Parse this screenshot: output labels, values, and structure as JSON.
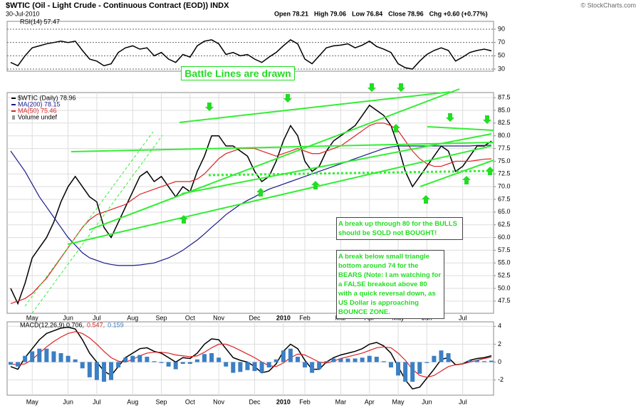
{
  "header": {
    "title": "$WTIC (Oil - Light Crude - Continuous Contract (EOD)) INDX",
    "date": "30-Jul-2010",
    "quote": [
      "Open 78.21",
      "High 79.06",
      "Low 76.84",
      "Close 78.96",
      "Chg +0.60 (+0.77%)"
    ],
    "copyright": "© StockCharts.com"
  },
  "chart_data": [
    {
      "type": "line",
      "title": "RSI(14) 57.47",
      "ylim": [
        26.8,
        101.8
      ],
      "yticks": [
        90,
        70,
        50,
        30
      ],
      "grid": true,
      "series": [
        {
          "name": "RSI(14)",
          "color": "#000000",
          "values": [
            40,
            35,
            50,
            62,
            65,
            68,
            70,
            72,
            70,
            72,
            58,
            45,
            42,
            35,
            38,
            55,
            62,
            65,
            60,
            62,
            50,
            55,
            45,
            40,
            52,
            48,
            65,
            72,
            74,
            68,
            52,
            55,
            50,
            52,
            45,
            40,
            48,
            55,
            65,
            74,
            68,
            45,
            38,
            50,
            62,
            65,
            66,
            68,
            62,
            66,
            72,
            64,
            60,
            55,
            38,
            32,
            30,
            42,
            52,
            58,
            62,
            58,
            42,
            48,
            55,
            58,
            60,
            57.47
          ]
        }
      ]
    },
    {
      "type": "line",
      "ylim": [
        45.1,
        88.5
      ],
      "grid": true,
      "yticks": [
        87.5,
        {
          "value": 85,
          "label": "85.0"
        },
        82.5,
        {
          "value": 80,
          "label": "80.0"
        },
        77.5,
        {
          "value": 75,
          "label": "75.0"
        },
        72.5,
        {
          "value": 70,
          "label": "70.0"
        },
        67.5,
        {
          "value": 65,
          "label": "65.0"
        },
        62.5,
        {
          "value": 60,
          "label": "60.0"
        },
        57.5,
        {
          "value": 55,
          "label": "55.0"
        },
        52.5,
        {
          "value": 50,
          "label": "50.0"
        },
        47.5
      ],
      "categories": [
        null,
        null,
        null,
        "May",
        null,
        null,
        null,
        null,
        "Jun",
        null,
        null,
        null,
        "Jul",
        null,
        null,
        null,
        null,
        "Aug",
        null,
        null,
        null,
        "Sep",
        null,
        null,
        null,
        "Oct",
        null,
        null,
        null,
        "Nov",
        null,
        null,
        null,
        null,
        "Dec",
        null,
        null,
        null,
        "2010",
        null,
        null,
        "Feb",
        null,
        null,
        null,
        null,
        "Mar",
        null,
        null,
        null,
        "Apr",
        null,
        null,
        null,
        "May",
        null,
        null,
        null,
        "Jun",
        null,
        null,
        null,
        null,
        "Jul",
        null,
        null,
        null,
        null
      ],
      "series": [
        {
          "name": "$WTIC (Daily) 78.96",
          "color": "#000000",
          "values": [
            50,
            47,
            51,
            56,
            58,
            60,
            63,
            67,
            70,
            72,
            70,
            68,
            67,
            62,
            60,
            63,
            66,
            69,
            72,
            73,
            71,
            72,
            70,
            68,
            70,
            69,
            73,
            76,
            80,
            80,
            78,
            78,
            77,
            76,
            73,
            71,
            72,
            75,
            79,
            82,
            80,
            75,
            73,
            74,
            77,
            79,
            80,
            81,
            82,
            84,
            86,
            85,
            84,
            82,
            78,
            73,
            70,
            72,
            74,
            76,
            78,
            77,
            73,
            74,
            76,
            78,
            78,
            78.96
          ]
        },
        {
          "name": "MA(200) 78.15",
          "color": "#1a1a8c",
          "values": [
            77,
            75,
            73,
            70.5,
            68,
            66,
            64,
            62,
            60,
            58.5,
            57,
            56,
            55.5,
            55,
            54.7,
            54.5,
            54.5,
            54.5,
            54.6,
            54.8,
            55,
            55.5,
            56,
            56.7,
            57.5,
            58.5,
            59.5,
            60.7,
            62,
            63.2,
            64.5,
            65.5,
            66.5,
            67.3,
            68,
            68.8,
            69.5,
            70,
            70.5,
            71,
            71.5,
            72,
            72.5,
            73,
            73.5,
            74,
            74.5,
            75,
            75.5,
            76,
            76.5,
            77,
            77.5,
            77.8,
            78,
            78,
            78,
            78,
            78,
            78,
            78,
            78,
            78,
            78,
            78,
            78.1,
            78.1,
            78.15
          ]
        },
        {
          "name": "MA(50) 75.46",
          "color": "#dd2222",
          "values": [
            47,
            47.5,
            48,
            49,
            50.5,
            52,
            54,
            56,
            58,
            60,
            62,
            63.5,
            64.5,
            65,
            65.5,
            66,
            66.5,
            67.5,
            68.5,
            69,
            69.5,
            70,
            70.5,
            71,
            71,
            71,
            71.5,
            72.5,
            74,
            75.5,
            76.5,
            77,
            77.5,
            77.5,
            77.5,
            77,
            76.5,
            76,
            76.5,
            77,
            77.5,
            77,
            76.5,
            76.5,
            77,
            77.5,
            78,
            79,
            80,
            81,
            82,
            82.5,
            82.5,
            82,
            81,
            79,
            77,
            75.5,
            74.5,
            74,
            74,
            74.5,
            75,
            75,
            75,
            75.2,
            75.4,
            75.46
          ]
        }
      ],
      "volume_label": "Volume undef",
      "annotations": [
        "Battle Lines are drawn",
        "A break up through 80 for the BULLS should be SOLD not BOUGHT!",
        "A break below small triangle bottom around 74 for the BEARS (Note: I am watching for a FALSE breakout above 80 with a quick reversal down, as US Dollar is approaching BOUNCE ZONE."
      ]
    },
    {
      "type": "line",
      "ylim": [
        -3.7,
        4.5
      ],
      "yticks": [
        4,
        2,
        0,
        -2
      ],
      "grid": true,
      "categories": [
        null,
        null,
        null,
        "May",
        null,
        null,
        null,
        null,
        "Jun",
        null,
        null,
        null,
        "Jul",
        null,
        null,
        null,
        null,
        "Aug",
        null,
        null,
        null,
        "Sep",
        null,
        null,
        null,
        "Oct",
        null,
        null,
        null,
        "Nov",
        null,
        null,
        null,
        null,
        "Dec",
        null,
        null,
        null,
        "2010",
        null,
        null,
        "Feb",
        null,
        null,
        null,
        null,
        "Mar",
        null,
        null,
        null,
        "Apr",
        null,
        null,
        null,
        "May",
        null,
        null,
        null,
        "Jun",
        null,
        null,
        null,
        null,
        "Jul",
        null,
        null,
        null,
        null
      ],
      "series": [
        {
          "name": "MACD(12,26,9) 0.706,",
          "color": "#000000",
          "values": [
            -0.5,
            -0.8,
            0.5,
            1.5,
            2.5,
            3.2,
            3.5,
            3.8,
            3.9,
            3.7,
            2.5,
            1,
            0,
            -1,
            -1.5,
            -0.5,
            0.5,
            1,
            1.5,
            1.6,
            1.2,
            1,
            0.5,
            0,
            0.5,
            0.4,
            1,
            2,
            2.6,
            2.5,
            1.5,
            0.5,
            0.2,
            0,
            -0.5,
            -1.2,
            -1,
            -0.2,
            1.2,
            2,
            1.5,
            0.2,
            -0.8,
            -0.8,
            0,
            0.5,
            0.8,
            1,
            1.2,
            1.5,
            2,
            2.2,
            1.8,
            1,
            -0.5,
            -2,
            -3,
            -2.8,
            -1.8,
            -0.8,
            0.3,
            0.5,
            -0.3,
            -0.2,
            0.2,
            0.4,
            0.5,
            0.706
          ]
        },
        {
          "name": "0.547,",
          "color": "#dd2222",
          "values": [
            -0.2,
            -0.3,
            -0.2,
            0.3,
            1,
            1.7,
            2.3,
            2.8,
            3.2,
            3.4,
            3.2,
            2.7,
            2,
            1.2,
            0.5,
            0.1,
            0,
            0.3,
            0.7,
            1,
            1.1,
            1.1,
            1,
            0.8,
            0.7,
            0.6,
            0.7,
            1.1,
            1.6,
            2,
            2,
            1.7,
            1.3,
            0.9,
            0.5,
            0,
            -0.4,
            -0.5,
            -0.1,
            0.5,
            0.9,
            0.8,
            0.4,
            0,
            -0.1,
            0.1,
            0.4,
            0.6,
            0.8,
            1,
            1.3,
            1.6,
            1.7,
            1.6,
            1,
            0.2,
            -0.8,
            -1.5,
            -1.7,
            -1.5,
            -1,
            -0.5,
            -0.3,
            -0.2,
            0,
            0.2,
            0.4,
            0.547
          ]
        },
        {
          "name": "0.159",
          "color": "#3b7fc4",
          "type": "bar",
          "values": [
            -0.3,
            -0.5,
            0.7,
            1.2,
            1.5,
            1.5,
            1.2,
            1,
            0.7,
            0.3,
            -0.7,
            -1.7,
            -2,
            -2.2,
            -2,
            -0.6,
            0.5,
            0.7,
            0.8,
            0.6,
            0.1,
            -0.1,
            -0.5,
            -0.8,
            -0.2,
            -0.2,
            0.3,
            0.9,
            1,
            0.5,
            -0.5,
            -1.2,
            -1.1,
            -0.9,
            -1,
            -1.2,
            -0.6,
            0.3,
            1.3,
            1.5,
            0.6,
            -0.6,
            -1.2,
            -0.8,
            0.1,
            0.4,
            0.4,
            0.4,
            0.4,
            0.5,
            0.7,
            0.6,
            0.1,
            -0.6,
            -1.5,
            -2.2,
            -2.2,
            -1.3,
            -0.1,
            0.7,
            1.3,
            1,
            0,
            0,
            0.2,
            0.2,
            0.1,
            0.159
          ]
        }
      ]
    }
  ]
}
